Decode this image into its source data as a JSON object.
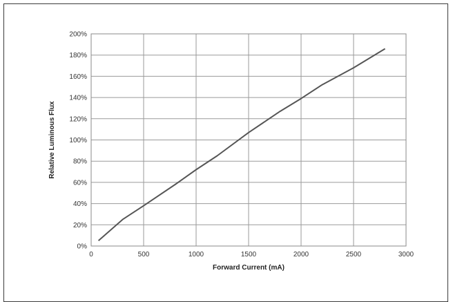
{
  "chart_data": {
    "type": "line",
    "title": "",
    "xlabel": "Forward Current (mA)",
    "ylabel": "Relative Luminous Flux",
    "xlim": [
      0,
      3000
    ],
    "ylim": [
      0,
      200
    ],
    "x_ticks": [
      0,
      500,
      1000,
      1500,
      2000,
      2500,
      3000
    ],
    "x_tick_labels": [
      "0",
      "500",
      "1000",
      "1500",
      "2000",
      "2500",
      "3000"
    ],
    "y_ticks": [
      0,
      20,
      40,
      60,
      80,
      100,
      120,
      140,
      160,
      180,
      200
    ],
    "y_tick_labels": [
      "0%",
      "20%",
      "40%",
      "60%",
      "80%",
      "100%",
      "120%",
      "140%",
      "160%",
      "180%",
      "200%"
    ],
    "grid": true,
    "legend": "none",
    "series": [
      {
        "color": "#555555",
        "x": [
          70,
          300,
          500,
          800,
          1000,
          1200,
          1500,
          1800,
          2000,
          2200,
          2500,
          2800
        ],
        "y": [
          5,
          25,
          38,
          58,
          72,
          85,
          107,
          127,
          139,
          152,
          168,
          186
        ]
      }
    ]
  }
}
